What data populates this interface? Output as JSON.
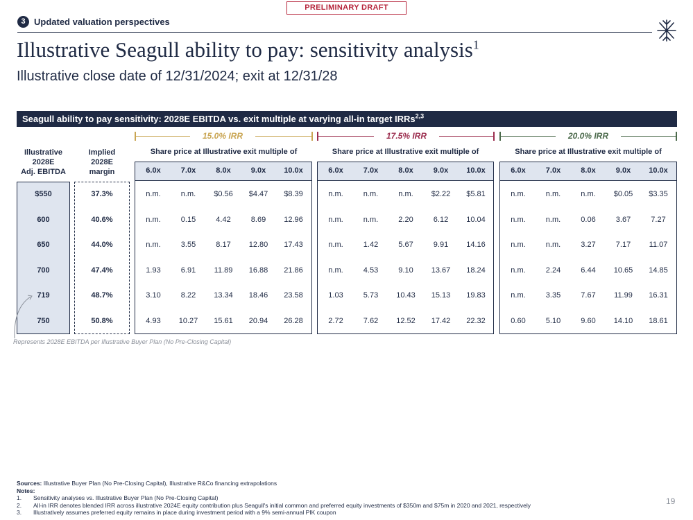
{
  "draft_label": "PRELIMINARY DRAFT",
  "section": {
    "number": "3",
    "label": "Updated valuation perspectives"
  },
  "title": "Illustrative Seagull ability to pay: sensitivity analysis",
  "title_sup": "1",
  "subtitle": "Illustrative close date of 12/31/2024; exit at 12/31/28",
  "banner": "Seagull ability to pay sensitivity: 2028E EBITDA vs. exit multiple at varying all-in target IRRs",
  "banner_sup": "2,3",
  "columns": {
    "ebitda": [
      "Illustrative",
      "2028E",
      "Adj. EBITDA"
    ],
    "margin": [
      "Implied",
      "2028E",
      "margin"
    ]
  },
  "group_heading": "Share price at Illustrative exit multiple of",
  "multiples": [
    "6.0x",
    "7.0x",
    "8.0x",
    "9.0x",
    "10.0x"
  ],
  "irr_labels": [
    "15.0% IRR",
    "17.5% IRR",
    "20.0% IRR"
  ],
  "rows": [
    {
      "ebitda": "$550",
      "margin": "37.3%",
      "g1": [
        "n.m.",
        "n.m.",
        "$0.56",
        "$4.47",
        "$8.39"
      ],
      "g2": [
        "n.m.",
        "n.m.",
        "n.m.",
        "$2.22",
        "$5.81"
      ],
      "g3": [
        "n.m.",
        "n.m.",
        "n.m.",
        "$0.05",
        "$3.35"
      ]
    },
    {
      "ebitda": "600",
      "margin": "40.6%",
      "g1": [
        "n.m.",
        "0.15",
        "4.42",
        "8.69",
        "12.96"
      ],
      "g2": [
        "n.m.",
        "n.m.",
        "2.20",
        "6.12",
        "10.04"
      ],
      "g3": [
        "n.m.",
        "n.m.",
        "0.06",
        "3.67",
        "7.27"
      ]
    },
    {
      "ebitda": "650",
      "margin": "44.0%",
      "g1": [
        "n.m.",
        "3.55",
        "8.17",
        "12.80",
        "17.43"
      ],
      "g2": [
        "n.m.",
        "1.42",
        "5.67",
        "9.91",
        "14.16"
      ],
      "g3": [
        "n.m.",
        "n.m.",
        "3.27",
        "7.17",
        "11.07"
      ]
    },
    {
      "ebitda": "700",
      "margin": "47.4%",
      "g1": [
        "1.93",
        "6.91",
        "11.89",
        "16.88",
        "21.86"
      ],
      "g2": [
        "n.m.",
        "4.53",
        "9.10",
        "13.67",
        "18.24"
      ],
      "g3": [
        "n.m.",
        "2.24",
        "6.44",
        "10.65",
        "14.85"
      ]
    },
    {
      "ebitda": "719",
      "margin": "48.7%",
      "g1": [
        "3.10",
        "8.22",
        "13.34",
        "18.46",
        "23.58"
      ],
      "g2": [
        "1.03",
        "5.73",
        "10.43",
        "15.13",
        "19.83"
      ],
      "g3": [
        "n.m.",
        "3.35",
        "7.67",
        "11.99",
        "16.31"
      ]
    },
    {
      "ebitda": "750",
      "margin": "50.8%",
      "g1": [
        "4.93",
        "10.27",
        "15.61",
        "20.94",
        "26.28"
      ],
      "g2": [
        "2.72",
        "7.62",
        "12.52",
        "17.42",
        "22.32"
      ],
      "g3": [
        "0.60",
        "5.10",
        "9.60",
        "14.10",
        "18.61"
      ]
    }
  ],
  "ebitda_note": "Represents 2028E EBITDA per Illustrative Buyer Plan (No Pre-Closing Capital)",
  "sources_label": "Sources:",
  "sources_text": "Illustrative Buyer Plan (No Pre-Closing Capital), Illustrative R&Co financing extrapolations",
  "notes_label": "Notes:",
  "notes": [
    {
      "num": "1.",
      "text": "Sensitivity analyses vs. Illustrative Buyer Plan (No Pre-Closing Capital)"
    },
    {
      "num": "2.",
      "text": "All-in IRR denotes blended IRR across illustrative 2024E equity contribution plus Seagull's initial common and preferred equity investments of $350m and $75m in 2020 and 2021, respectively"
    },
    {
      "num": "3.",
      "text": "Illustratively assumes preferred equity remains in place during investment period with a 9% semi-annual PIK coupon"
    }
  ],
  "page_number": "19",
  "colors": {
    "navy": "#1f2a44",
    "draft_red": "#b5233a",
    "irr_15": "#c9a552",
    "irr_175": "#9b2d4e",
    "irr_20": "#4c6a4c",
    "header_fill": "#dfe5ef"
  }
}
